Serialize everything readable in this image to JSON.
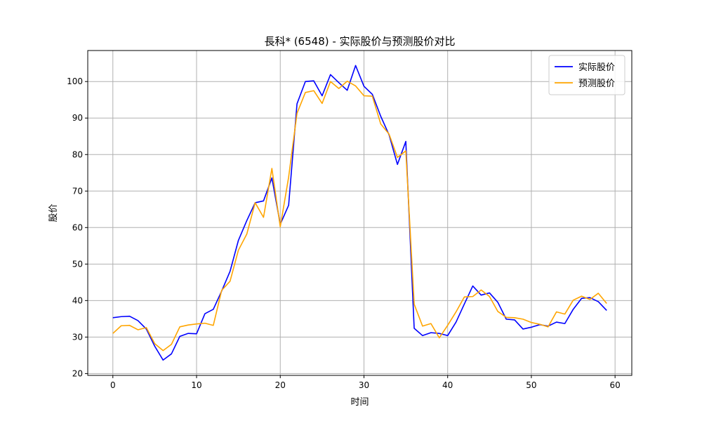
{
  "chart_data": {
    "type": "line",
    "title": "長科* (6548) - 实际股价与预测股价对比",
    "xlabel": "时间",
    "ylabel": "股价",
    "xlim": [
      -3,
      62
    ],
    "ylim": [
      19.5,
      108.5
    ],
    "xticks": [
      0,
      10,
      20,
      30,
      40,
      50,
      60
    ],
    "yticks": [
      20,
      30,
      40,
      50,
      60,
      70,
      80,
      90,
      100
    ],
    "grid": true,
    "legend_position": "top-right",
    "x": [
      0,
      1,
      2,
      3,
      4,
      5,
      6,
      7,
      8,
      9,
      10,
      11,
      12,
      13,
      14,
      15,
      16,
      17,
      18,
      19,
      20,
      21,
      22,
      23,
      24,
      25,
      26,
      27,
      28,
      29,
      30,
      31,
      32,
      33,
      34,
      35,
      36,
      37,
      38,
      39,
      40,
      41,
      42,
      43,
      44,
      45,
      46,
      47,
      48,
      49,
      50,
      51,
      52,
      53,
      54,
      55,
      56,
      57,
      58,
      59
    ],
    "series": [
      {
        "name": "实际股价",
        "color": "#0000ff",
        "values": [
          35.3,
          35.6,
          35.7,
          34.5,
          32.2,
          27.5,
          23.7,
          25.4,
          30.2,
          31.0,
          30.9,
          36.4,
          37.6,
          42.6,
          48.0,
          56.5,
          61.9,
          66.8,
          67.3,
          73.6,
          60.9,
          66.1,
          93.9,
          100.0,
          100.2,
          96.1,
          101.9,
          99.7,
          97.6,
          104.4,
          98.7,
          96.5,
          90.5,
          85.4,
          77.3,
          83.6,
          32.4,
          30.4,
          31.2,
          31.0,
          30.4,
          34.1,
          39.1,
          44.0,
          41.5,
          42.1,
          39.5,
          34.9,
          34.7,
          32.2,
          32.7,
          33.4,
          33.0,
          34.1,
          33.7,
          37.6,
          40.6,
          40.8,
          39.7,
          37.3
        ]
      },
      {
        "name": "预测股价",
        "color": "#ffa500",
        "values": [
          31.0,
          33.1,
          33.2,
          32.0,
          32.6,
          28.2,
          26.3,
          28.0,
          32.8,
          33.3,
          33.6,
          33.8,
          33.2,
          42.8,
          45.3,
          53.8,
          58.2,
          66.8,
          62.8,
          76.2,
          60.2,
          73.8,
          91.3,
          97.0,
          97.5,
          94.0,
          100.0,
          98.1,
          100.1,
          98.8,
          96.1,
          96.0,
          88.4,
          85.6,
          79.2,
          81.0,
          39.0,
          33.0,
          33.7,
          29.8,
          33.2,
          36.9,
          41.0,
          41.1,
          42.9,
          41.1,
          37.0,
          35.4,
          35.3,
          34.9,
          34.0,
          33.5,
          32.8,
          36.9,
          36.3,
          40.1,
          41.2,
          40.3,
          42.0,
          39.2
        ]
      }
    ]
  }
}
